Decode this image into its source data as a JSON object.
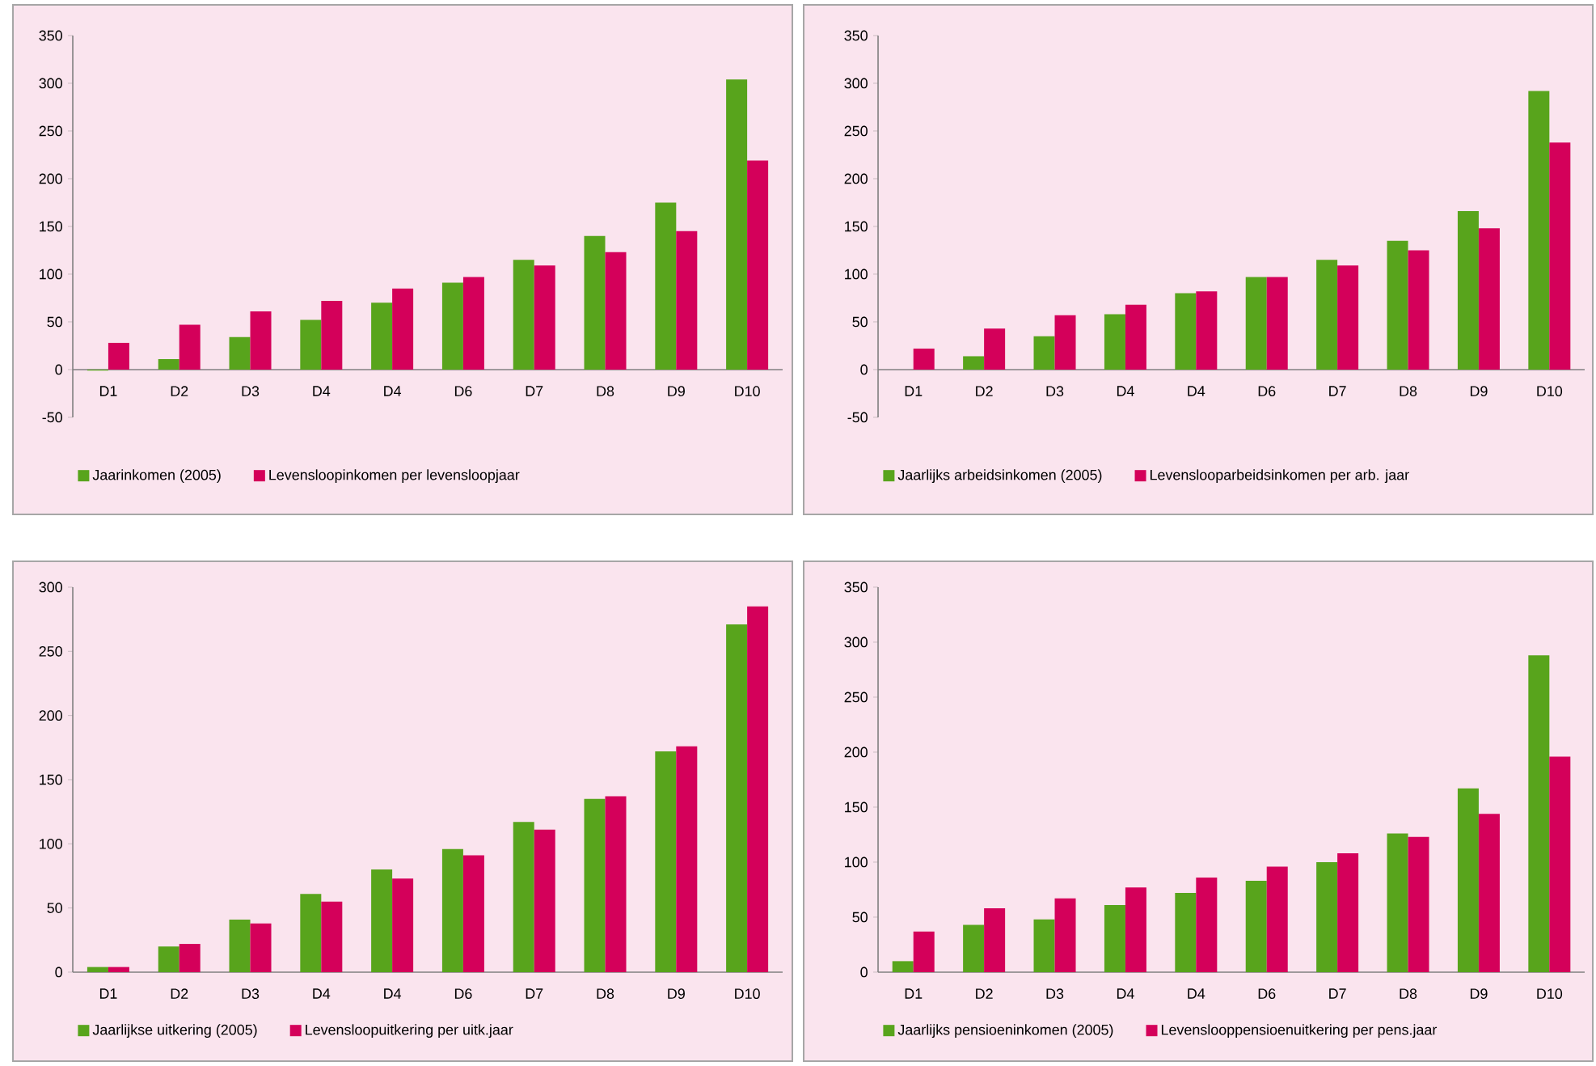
{
  "chart_data": [
    {
      "type": "bar",
      "categories": [
        "D1",
        "D2",
        "D3",
        "D4",
        "D4",
        "D6",
        "D7",
        "D8",
        "D9",
        "D10"
      ],
      "ylim": [
        -50,
        350
      ],
      "yticks": [
        -50,
        0,
        50,
        100,
        150,
        200,
        250,
        300,
        350
      ],
      "legend": "bottom",
      "series": [
        {
          "name": "Jaarinkomen (2005)",
          "color": "#58a41c",
          "values": [
            -1,
            11,
            34,
            52,
            70,
            91,
            115,
            140,
            175,
            304
          ]
        },
        {
          "name": "Levensloopinkomen per levensloopjaar",
          "color": "#d4005a",
          "values": [
            28,
            47,
            61,
            72,
            85,
            97,
            109,
            123,
            145,
            219
          ]
        }
      ]
    },
    {
      "type": "bar",
      "categories": [
        "D1",
        "D2",
        "D3",
        "D4",
        "D4",
        "D6",
        "D7",
        "D8",
        "D9",
        "D10"
      ],
      "ylim": [
        -50,
        350
      ],
      "yticks": [
        -50,
        0,
        50,
        100,
        150,
        200,
        250,
        300,
        350
      ],
      "legend": "bottom",
      "series": [
        {
          "name": "Jaarlijks arbeidsinkomen (2005)",
          "color": "#58a41c",
          "values": [
            0,
            14,
            35,
            58,
            80,
            97,
            115,
            135,
            166,
            292
          ]
        },
        {
          "name": "Levenslooparbeidsinkomen per arb. jaar",
          "color": "#d4005a",
          "values": [
            22,
            43,
            57,
            68,
            82,
            97,
            109,
            125,
            148,
            238
          ]
        }
      ]
    },
    {
      "type": "bar",
      "categories": [
        "D1",
        "D2",
        "D3",
        "D4",
        "D4",
        "D6",
        "D7",
        "D8",
        "D9",
        "D10"
      ],
      "ylim": [
        0,
        300
      ],
      "yticks": [
        0,
        50,
        100,
        150,
        200,
        250,
        300
      ],
      "legend": "bottom",
      "series": [
        {
          "name": "Jaarlijkse uitkering (2005)",
          "color": "#58a41c",
          "values": [
            4,
            20,
            41,
            61,
            80,
            96,
            117,
            135,
            172,
            271
          ]
        },
        {
          "name": "Levensloopuitkering per uitk.jaar",
          "color": "#d4005a",
          "values": [
            4,
            22,
            38,
            55,
            73,
            91,
            111,
            137,
            176,
            285
          ]
        }
      ]
    },
    {
      "type": "bar",
      "categories": [
        "D1",
        "D2",
        "D3",
        "D4",
        "D4",
        "D6",
        "D7",
        "D8",
        "D9",
        "D10"
      ],
      "ylim": [
        0,
        350
      ],
      "yticks": [
        0,
        50,
        100,
        150,
        200,
        250,
        300,
        350
      ],
      "legend": "bottom",
      "series": [
        {
          "name": "Jaarlijks pensioeninkomen (2005)",
          "color": "#58a41c",
          "values": [
            10,
            43,
            48,
            61,
            72,
            83,
            100,
            126,
            167,
            288
          ]
        },
        {
          "name": "Levenslooppensioenuitkering per pens.jaar",
          "color": "#d4005a",
          "values": [
            37,
            58,
            67,
            77,
            86,
            96,
            108,
            123,
            144,
            196
          ]
        }
      ]
    }
  ]
}
